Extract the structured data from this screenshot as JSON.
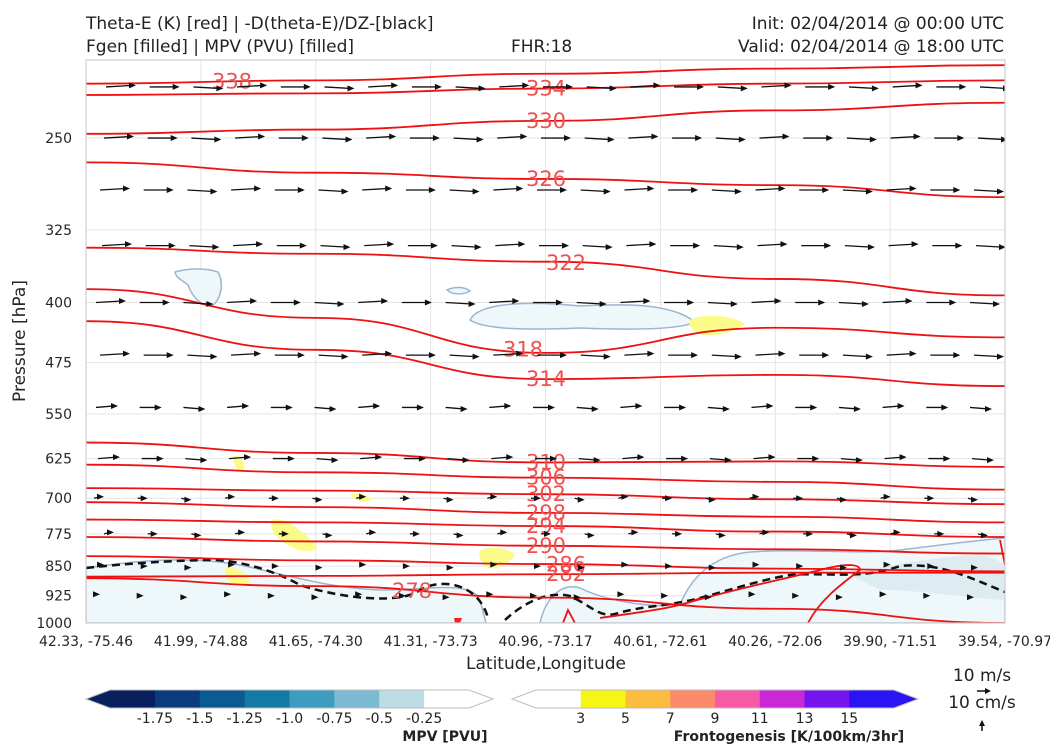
{
  "header": {
    "line1_left": "Theta-E (K) [red] | -D(theta-E)/DZ-[black]",
    "line2_left": "Fgen [filled] | MPV (PVU) [filled]",
    "fhr": "FHR:18",
    "init": "Init: 02/04/2014 @ 00:00 UTC",
    "valid": "Valid: 02/04/2014 @ 18:00 UTC"
  },
  "chart_data": {
    "type": "cross-section",
    "xlabel": "Latitude,Longitude",
    "ylabel": "Pressure [hPa]",
    "x_ticks": [
      "42.33, -75.46",
      "41.99, -74.88",
      "41.65, -74.30",
      "41.31, -73.73",
      "40.96, -73.17",
      "40.61, -72.61",
      "40.26, -72.06",
      "39.90, -71.51",
      "39.54, -70.97"
    ],
    "y_ticks": [
      250,
      325,
      400,
      475,
      550,
      625,
      700,
      775,
      850,
      925,
      1000
    ],
    "ylim": [
      1000,
      200
    ],
    "y_scale": "log",
    "grid": true,
    "theta_e_color": "#ee1111",
    "theta_e_contours": [
      {
        "label": 338,
        "p": [
          214,
          212,
          208,
          205,
          203
        ]
      },
      {
        "label": 334,
        "p": [
          221,
          220,
          217,
          214,
          212
        ]
      },
      {
        "label": 330,
        "p": [
          247,
          244,
          238,
          231,
          226
        ]
      },
      {
        "label": 326,
        "p": [
          268,
          276,
          281,
          286,
          296
        ]
      },
      {
        "label": 322,
        "p": [
          342,
          348,
          356,
          374,
          392
        ]
      },
      {
        "label": 318,
        "p": [
          385,
          418,
          462,
          430,
          442
        ]
      },
      {
        "label": 314,
        "p": [
          422,
          458,
          498,
          492,
          508
        ]
      },
      {
        "label": 310,
        "p": [
          597,
          615,
          632,
          630,
          640
        ]
      },
      {
        "label": 306,
        "p": [
          636,
          650,
          660,
          668,
          683
        ]
      },
      {
        "label": 302,
        "p": [
          680,
          685,
          692,
          702,
          712
        ]
      },
      {
        "label": 298,
        "p": [
          708,
          718,
          730,
          738,
          750
        ]
      },
      {
        "label": 294,
        "p": [
          744,
          750,
          758,
          770,
          782
        ]
      },
      {
        "label": 290,
        "p": [
          782,
          792,
          802,
          810,
          820
        ]
      },
      {
        "label": 286,
        "p": [
          826,
          836,
          845,
          856,
          863
        ]
      },
      {
        "label": 282,
        "p": [
          876,
          874,
          870,
          866,
          866
        ]
      },
      {
        "label": 278,
        "p": [
          880,
          900,
          930,
          960,
          1000
        ]
      }
    ],
    "mpv_colorbar": {
      "title": "MPV [PVU]",
      "ticks": [
        "-1.75",
        "-1.5",
        "-1.25",
        "-1.0",
        "-0.75",
        "-0.5",
        "-0.25"
      ],
      "colors": [
        "#08205e",
        "#0b3b7c",
        "#0a5b92",
        "#137aa6",
        "#3d9cc0",
        "#7cbad2",
        "#bcdde6",
        "#ffffff"
      ]
    },
    "fgen_colorbar": {
      "title": "Frontogenesis [K/100km/3hr]",
      "ticks": [
        "3",
        "5",
        "7",
        "9",
        "11",
        "13",
        "15"
      ],
      "colors": [
        "#ffffff",
        "#f6f613",
        "#fbbd3d",
        "#fb8b6b",
        "#f65aa6",
        "#c828d6",
        "#7414ef",
        "#2a14f4"
      ]
    },
    "wind_reference": {
      "horizontal": "10 m/s",
      "vertical": "10 cm/s"
    }
  }
}
